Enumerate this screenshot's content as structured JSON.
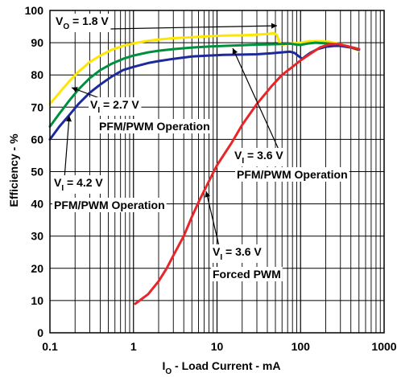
{
  "chart_data": {
    "type": "line",
    "xscale": "log",
    "xlim": [
      0.1,
      1000
    ],
    "ylim": [
      0,
      100
    ],
    "grid": true,
    "xlabel": {
      "main": "I",
      "sub": "O",
      "rest": " - Load Current - mA"
    },
    "ylabel": "Efficiency - %",
    "x_ticks": [
      "0.1",
      "1",
      "10",
      "100",
      "1000"
    ],
    "y_ticks": [
      "0",
      "10",
      "20",
      "30",
      "40",
      "50",
      "60",
      "70",
      "80",
      "90",
      "100"
    ],
    "series": [
      {
        "label_id": "vo",
        "color": "#ffe600",
        "points": [
          [
            0.1,
            71
          ],
          [
            0.13,
            74.5
          ],
          [
            0.17,
            78
          ],
          [
            0.22,
            81
          ],
          [
            0.3,
            84
          ],
          [
            0.4,
            86
          ],
          [
            0.55,
            87.8
          ],
          [
            0.75,
            89
          ],
          [
            1,
            89.8
          ],
          [
            1.5,
            90.6
          ],
          [
            2,
            91
          ],
          [
            3,
            91.4
          ],
          [
            5,
            91.7
          ],
          [
            8,
            92
          ],
          [
            12,
            92.2
          ],
          [
            20,
            92.3
          ],
          [
            30,
            92.5
          ],
          [
            40,
            92.7
          ],
          [
            48,
            93
          ],
          [
            52,
            92.4
          ],
          [
            56,
            90
          ],
          [
            60,
            89.4
          ],
          [
            75,
            89.7
          ],
          [
            100,
            90
          ],
          [
            130,
            90.5
          ],
          [
            170,
            90.5
          ],
          [
            220,
            90.3
          ],
          [
            300,
            89.5
          ],
          [
            400,
            88.5
          ],
          [
            500,
            87.5
          ]
        ]
      },
      {
        "label_id": "v27",
        "color": "#008f3c",
        "points": [
          [
            0.1,
            64
          ],
          [
            0.13,
            68
          ],
          [
            0.17,
            72
          ],
          [
            0.22,
            75.5
          ],
          [
            0.3,
            79
          ],
          [
            0.4,
            81.5
          ],
          [
            0.55,
            83.5
          ],
          [
            0.75,
            85
          ],
          [
            1,
            86
          ],
          [
            1.5,
            87
          ],
          [
            2,
            87.5
          ],
          [
            3,
            88
          ],
          [
            5,
            88.5
          ],
          [
            8,
            88.8
          ],
          [
            12,
            89
          ],
          [
            20,
            89.2
          ],
          [
            30,
            89.4
          ],
          [
            45,
            89.5
          ],
          [
            60,
            89.6
          ],
          [
            75,
            89.7
          ],
          [
            90,
            89.4
          ],
          [
            100,
            89.3
          ],
          [
            120,
            89.7
          ],
          [
            150,
            90
          ],
          [
            200,
            89.8
          ],
          [
            250,
            89.6
          ],
          [
            350,
            89
          ],
          [
            500,
            88
          ]
        ]
      },
      {
        "label_id": "v42",
        "color": "#1c2a9c",
        "points": [
          [
            0.1,
            60
          ],
          [
            0.13,
            64
          ],
          [
            0.17,
            67.5
          ],
          [
            0.22,
            71
          ],
          [
            0.3,
            74.5
          ],
          [
            0.4,
            77
          ],
          [
            0.55,
            79.5
          ],
          [
            0.75,
            81.5
          ],
          [
            1,
            82.5
          ],
          [
            1.5,
            83.7
          ],
          [
            2,
            84.3
          ],
          [
            3,
            85
          ],
          [
            5,
            85.7
          ],
          [
            8,
            86
          ],
          [
            12,
            86.2
          ],
          [
            20,
            86.3
          ],
          [
            30,
            86.4
          ],
          [
            45,
            86.7
          ],
          [
            60,
            87
          ],
          [
            75,
            87.2
          ],
          [
            85,
            86.8
          ],
          [
            95,
            85.8
          ],
          [
            105,
            85
          ],
          [
            115,
            85.8
          ],
          [
            130,
            86.8
          ],
          [
            160,
            88
          ],
          [
            200,
            88.7
          ],
          [
            250,
            89
          ],
          [
            300,
            89
          ],
          [
            400,
            88.5
          ],
          [
            500,
            87.8
          ]
        ]
      },
      {
        "label_id": "vfpwm",
        "color": "#e8262a",
        "points": [
          [
            1.05,
            9
          ],
          [
            1.5,
            12
          ],
          [
            2,
            16
          ],
          [
            2.5,
            20
          ],
          [
            3,
            24
          ],
          [
            4,
            30
          ],
          [
            5,
            36
          ],
          [
            6,
            40.5
          ],
          [
            8,
            47
          ],
          [
            10,
            52
          ],
          [
            15,
            59
          ],
          [
            20,
            64.5
          ],
          [
            30,
            71
          ],
          [
            45,
            76.5
          ],
          [
            60,
            80
          ],
          [
            80,
            82.5
          ],
          [
            100,
            84.5
          ],
          [
            130,
            86.5
          ],
          [
            170,
            88.5
          ],
          [
            220,
            89.5
          ],
          [
            280,
            89.6
          ],
          [
            350,
            89
          ],
          [
            500,
            88
          ]
        ]
      }
    ],
    "annotations": [
      {
        "id": "vo",
        "main": "V",
        "sub": "O",
        "rest": " = 1.8 V",
        "line2": ""
      },
      {
        "id": "v27",
        "main": "V",
        "sub": "I",
        "rest": " = 2.7 V",
        "line2": "PFM/PWM Operation"
      },
      {
        "id": "v42",
        "main": "V",
        "sub": "I",
        "rest": " = 4.2 V",
        "line2": "PFM/PWM Operation"
      },
      {
        "id": "v36",
        "main": "V",
        "sub": "I",
        "rest": " = 3.6 V",
        "line2": "PFM/PWM Operation"
      },
      {
        "id": "vfpwm",
        "main": "V",
        "sub": "I",
        "rest": " = 3.6 V",
        "line2": "Forced PWM"
      }
    ]
  }
}
